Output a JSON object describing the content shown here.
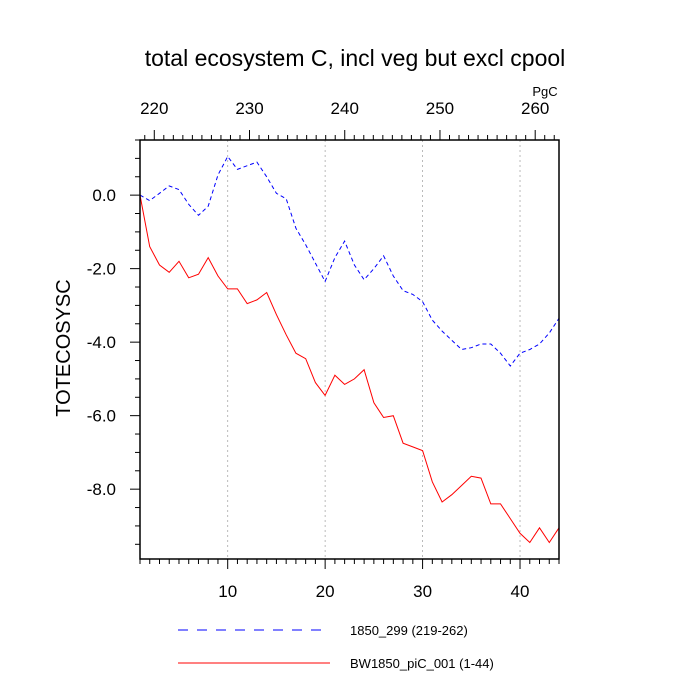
{
  "chart_data": {
    "type": "line",
    "title": "total ecosystem C, incl veg but excl cpool",
    "ylabel": "TOTECOSYSC",
    "top_axis_units": "PgC",
    "xlim": [
      1,
      44
    ],
    "ylim": [
      -9.9,
      1.5
    ],
    "top_xlim": [
      218.5,
      262.5
    ],
    "x_ticks": [
      10,
      20,
      30,
      40
    ],
    "top_ticks": [
      220,
      230,
      240,
      250,
      260
    ],
    "y_ticks": [
      0,
      -2,
      -4,
      -6,
      -8
    ],
    "x_tick_labels": [
      "10",
      "20",
      "30",
      "40"
    ],
    "top_tick_labels": [
      "220",
      "230",
      "240",
      "250",
      "260"
    ],
    "y_tick_labels": [
      "0.0",
      "-2.0",
      "-4.0",
      "-6.0",
      "-8.0"
    ],
    "grid": "vertical-dotted",
    "legend_position": "bottom",
    "colors": {
      "top_axis": "#0000ff",
      "bottom_axis": "#ff0000"
    },
    "series": [
      {
        "name": "1850_299 (219-262)",
        "color": "#0000ff",
        "dash": "dashed",
        "x": [
          1,
          2,
          3,
          4,
          5,
          6,
          7,
          8,
          9,
          10,
          11,
          12,
          13,
          14,
          15,
          16,
          17,
          18,
          19,
          20,
          21,
          22,
          23,
          24,
          25,
          26,
          27,
          28,
          29,
          30,
          31,
          32,
          33,
          34,
          35,
          36,
          37,
          38,
          39,
          40,
          41,
          42,
          43,
          44
        ],
        "values": [
          0.0,
          -0.15,
          0.05,
          0.25,
          0.15,
          -0.25,
          -0.55,
          -0.3,
          0.55,
          1.05,
          0.7,
          0.8,
          0.9,
          0.5,
          0.05,
          -0.1,
          -0.9,
          -1.35,
          -1.85,
          -2.35,
          -1.7,
          -1.25,
          -1.9,
          -2.3,
          -2.0,
          -1.65,
          -2.2,
          -2.6,
          -2.7,
          -2.9,
          -3.4,
          -3.7,
          -3.95,
          -4.2,
          -4.15,
          -4.05,
          -4.05,
          -4.3,
          -4.65,
          -4.3,
          -4.2,
          -4.05,
          -3.75,
          -3.35
        ]
      },
      {
        "name": "BW1850_piC_001 (1-44)",
        "color": "#ff0000",
        "dash": "solid",
        "x": [
          1,
          2,
          3,
          4,
          5,
          6,
          7,
          8,
          9,
          10,
          11,
          12,
          13,
          14,
          15,
          16,
          17,
          18,
          19,
          20,
          21,
          22,
          23,
          24,
          25,
          26,
          27,
          28,
          29,
          30,
          31,
          32,
          33,
          34,
          35,
          36,
          37,
          38,
          39,
          40,
          41,
          42,
          43,
          44
        ],
        "values": [
          0.0,
          -1.4,
          -1.9,
          -2.1,
          -1.8,
          -2.25,
          -2.15,
          -1.7,
          -2.2,
          -2.55,
          -2.55,
          -2.95,
          -2.85,
          -2.65,
          -3.25,
          -3.8,
          -4.3,
          -4.45,
          -5.1,
          -5.45,
          -4.9,
          -5.15,
          -5.0,
          -4.75,
          -5.65,
          -6.05,
          -6.0,
          -6.75,
          -6.85,
          -6.95,
          -7.8,
          -8.35,
          -8.15,
          -7.9,
          -7.65,
          -7.7,
          -8.4,
          -8.4,
          -8.8,
          -9.2,
          -9.45,
          -9.05,
          -9.45,
          -9.05
        ]
      }
    ]
  }
}
